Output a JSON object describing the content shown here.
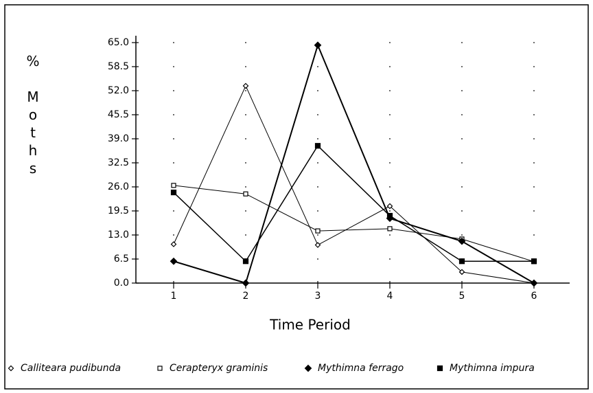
{
  "chart_data": {
    "type": "line",
    "xlabel": "Time Period",
    "ylabel": "% Moths",
    "categories": [
      "1",
      "2",
      "3",
      "4",
      "5",
      "6"
    ],
    "ylim": [
      0,
      65
    ],
    "yticks": [
      {
        "value": 0,
        "label": "0.0"
      },
      {
        "value": 6.5,
        "label": "6.5"
      },
      {
        "value": 13,
        "label": "13.0"
      },
      {
        "value": 19.5,
        "label": "19.5"
      },
      {
        "value": 26,
        "label": "26.0"
      },
      {
        "value": 32.5,
        "label": "32.5"
      },
      {
        "value": 39,
        "label": "39.0"
      },
      {
        "value": 45.5,
        "label": "45.5"
      },
      {
        "value": 52,
        "label": "52.0"
      },
      {
        "value": 58.5,
        "label": "58.5"
      },
      {
        "value": 65,
        "label": "65.0"
      }
    ],
    "grid": true,
    "legend": "bottom",
    "series": [
      {
        "name": "Calliteara pudibunda",
        "color": "#000000",
        "marker": "open-diamond",
        "values": [
          10.5,
          53.3,
          10.3,
          20.8,
          3,
          0
        ]
      },
      {
        "name": "Cerapteryx graminis",
        "color": "#000000",
        "marker": "open-square",
        "values": [
          26.4,
          24.1,
          14.1,
          14.7,
          11.9,
          5.8
        ]
      },
      {
        "name": "Mythimna ferrago",
        "color": "#000000",
        "marker": "filled-diamond",
        "values": [
          5.9,
          0,
          64.3,
          17.5,
          11.3,
          0
        ]
      },
      {
        "name": "Mythimna impura",
        "color": "#000000",
        "marker": "filled-square",
        "values": [
          24.5,
          5.9,
          37.1,
          18.2,
          5.9,
          5.9
        ]
      }
    ]
  }
}
